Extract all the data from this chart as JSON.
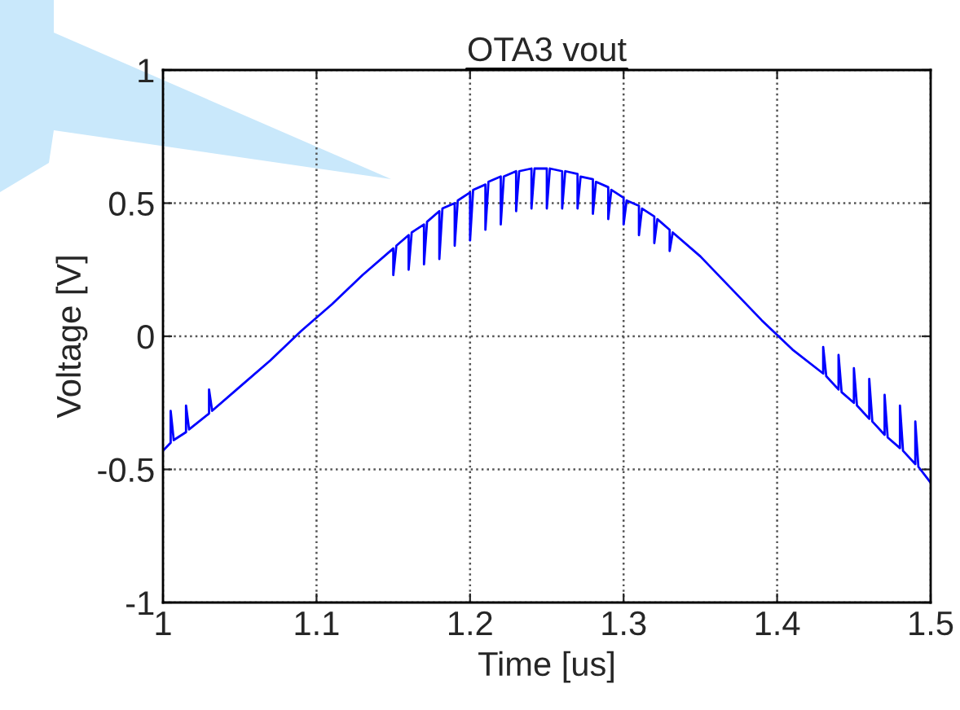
{
  "chart_data": {
    "type": "line",
    "title": "OTA3 vout",
    "xlabel": "Time [us]",
    "ylabel": "Voltage [V]",
    "xlim": [
      1,
      1.5
    ],
    "xticks": [
      1,
      1.1,
      1.2,
      1.3,
      1.4,
      1.5
    ],
    "ylim": [
      -1,
      1
    ],
    "yticks": [
      -1,
      -0.5,
      0,
      0.5,
      1
    ],
    "grid": true,
    "legend": false,
    "marker": "none",
    "line_style": "solid",
    "series": [
      {
        "color": "#0000ff",
        "x": [
          1.0,
          1.005,
          1.005,
          1.007,
          1.015,
          1.015,
          1.017,
          1.03,
          1.03,
          1.032,
          1.05,
          1.07,
          1.09,
          1.11,
          1.13,
          1.15,
          1.15,
          1.152,
          1.16,
          1.16,
          1.162,
          1.17,
          1.17,
          1.172,
          1.18,
          1.18,
          1.182,
          1.19,
          1.19,
          1.192,
          1.2,
          1.2,
          1.202,
          1.21,
          1.21,
          1.212,
          1.22,
          1.22,
          1.222,
          1.23,
          1.23,
          1.232,
          1.24,
          1.24,
          1.242,
          1.25,
          1.25,
          1.252,
          1.26,
          1.26,
          1.262,
          1.27,
          1.27,
          1.272,
          1.28,
          1.28,
          1.282,
          1.29,
          1.29,
          1.292,
          1.3,
          1.3,
          1.302,
          1.31,
          1.31,
          1.312,
          1.32,
          1.32,
          1.322,
          1.33,
          1.33,
          1.332,
          1.35,
          1.37,
          1.39,
          1.41,
          1.43,
          1.43,
          1.432,
          1.44,
          1.44,
          1.442,
          1.45,
          1.45,
          1.452,
          1.46,
          1.46,
          1.462,
          1.47,
          1.47,
          1.472,
          1.48,
          1.48,
          1.482,
          1.49,
          1.49,
          1.492,
          1.5
        ],
        "values": [
          -0.43,
          -0.4,
          -0.28,
          -0.39,
          -0.36,
          -0.26,
          -0.35,
          -0.29,
          -0.2,
          -0.28,
          -0.19,
          -0.09,
          0.02,
          0.12,
          0.23,
          0.33,
          0.23,
          0.34,
          0.38,
          0.25,
          0.39,
          0.42,
          0.27,
          0.43,
          0.47,
          0.29,
          0.48,
          0.5,
          0.34,
          0.51,
          0.54,
          0.36,
          0.55,
          0.57,
          0.4,
          0.58,
          0.6,
          0.42,
          0.6,
          0.62,
          0.47,
          0.62,
          0.63,
          0.48,
          0.63,
          0.63,
          0.48,
          0.63,
          0.62,
          0.48,
          0.62,
          0.61,
          0.48,
          0.6,
          0.59,
          0.46,
          0.58,
          0.56,
          0.44,
          0.55,
          0.52,
          0.42,
          0.51,
          0.49,
          0.38,
          0.48,
          0.45,
          0.35,
          0.44,
          0.4,
          0.32,
          0.39,
          0.3,
          0.18,
          0.06,
          -0.05,
          -0.14,
          -0.04,
          -0.15,
          -0.2,
          -0.07,
          -0.21,
          -0.25,
          -0.12,
          -0.26,
          -0.31,
          -0.16,
          -0.32,
          -0.37,
          -0.22,
          -0.38,
          -0.42,
          -0.26,
          -0.43,
          -0.48,
          -0.32,
          -0.49,
          -0.55
        ]
      }
    ]
  }
}
